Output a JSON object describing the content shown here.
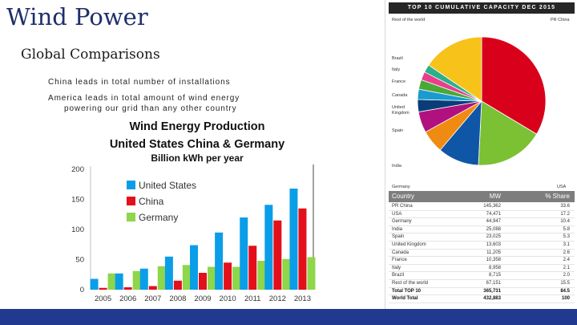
{
  "slide": {
    "title": "Wind Power",
    "subtitle": "Global Comparisons",
    "bullet_1": "China leads in total number of installations",
    "bullet_2_line_1": "America leads in total amount of wind energy",
    "bullet_2_line_2": "powering our grid than any other country"
  },
  "colors": {
    "title": "#1f2f6b",
    "united_states": "#0b9ee8",
    "china": "#e3101b",
    "germany": "#8ed64a",
    "footer": "#213a8f"
  },
  "chart_data": [
    {
      "type": "bar",
      "title_line_1": "Wind Energy Production",
      "title_line_2": "United States China & Germany",
      "title_line_3": "Billion kWh per year",
      "categories": [
        "2005",
        "2006",
        "2007",
        "2008",
        "2009",
        "2010",
        "2011",
        "2012",
        "2013"
      ],
      "series": [
        {
          "name": "United States",
          "values": [
            18,
            27,
            35,
            55,
            74,
            95,
            120,
            141,
            168
          ]
        },
        {
          "name": "China",
          "values": [
            3,
            4,
            6,
            15,
            28,
            45,
            73,
            115,
            135
          ]
        },
        {
          "name": "Germany",
          "values": [
            27,
            31,
            39,
            41,
            38,
            38,
            48,
            51,
            54
          ]
        }
      ],
      "yticks": [
        0,
        50,
        100,
        150,
        200
      ],
      "ylim": [
        0,
        200
      ],
      "legend": "top-left"
    },
    {
      "type": "pie",
      "title": "TOP 10 CUMULATIVE CAPACITY DEC 2015",
      "slices": [
        {
          "name": "PR China",
          "value": 33.6,
          "color": "#d9001b"
        },
        {
          "name": "USA",
          "value": 17.2,
          "color": "#7cc033"
        },
        {
          "name": "Germany",
          "value": 10.4,
          "color": "#0f56a6"
        },
        {
          "name": "India",
          "value": 5.8,
          "color": "#ef8b12"
        },
        {
          "name": "Spain",
          "value": 5.3,
          "color": "#b0117f"
        },
        {
          "name": "United Kingdom",
          "value": 3.1,
          "color": "#0a3d78"
        },
        {
          "name": "Canada",
          "value": 2.6,
          "color": "#1a9bd0"
        },
        {
          "name": "France",
          "value": 2.4,
          "color": "#4aa838"
        },
        {
          "name": "Italy",
          "value": 2.1,
          "color": "#e83e8c"
        },
        {
          "name": "Brazil",
          "value": 2.0,
          "color": "#2bb08a"
        },
        {
          "name": "Rest of the world",
          "value": 15.5,
          "color": "#f7c21a"
        }
      ]
    }
  ],
  "table": {
    "headers": [
      "Country",
      "MW",
      "% Share"
    ],
    "rows": [
      [
        "PR China",
        "145,362",
        "33.6"
      ],
      [
        "USA",
        "74,471",
        "17.2"
      ],
      [
        "Germany",
        "44,947",
        "10.4"
      ],
      [
        "India",
        "25,088",
        "5.8"
      ],
      [
        "Spain",
        "23,025",
        "5.3"
      ],
      [
        "United Kingdom",
        "13,603",
        "3.1"
      ],
      [
        "Canada",
        "11,205",
        "2.6"
      ],
      [
        "France",
        "10,358",
        "2.4"
      ],
      [
        "Italy",
        "8,958",
        "2.1"
      ],
      [
        "Brazil",
        "8,715",
        "2.0"
      ],
      [
        "Rest of the world",
        "67,151",
        "15.5"
      ]
    ],
    "total_top10": [
      "Total TOP 10",
      "365,731",
      "84.5"
    ],
    "world_total": [
      "World Total",
      "432,883",
      "100"
    ]
  }
}
